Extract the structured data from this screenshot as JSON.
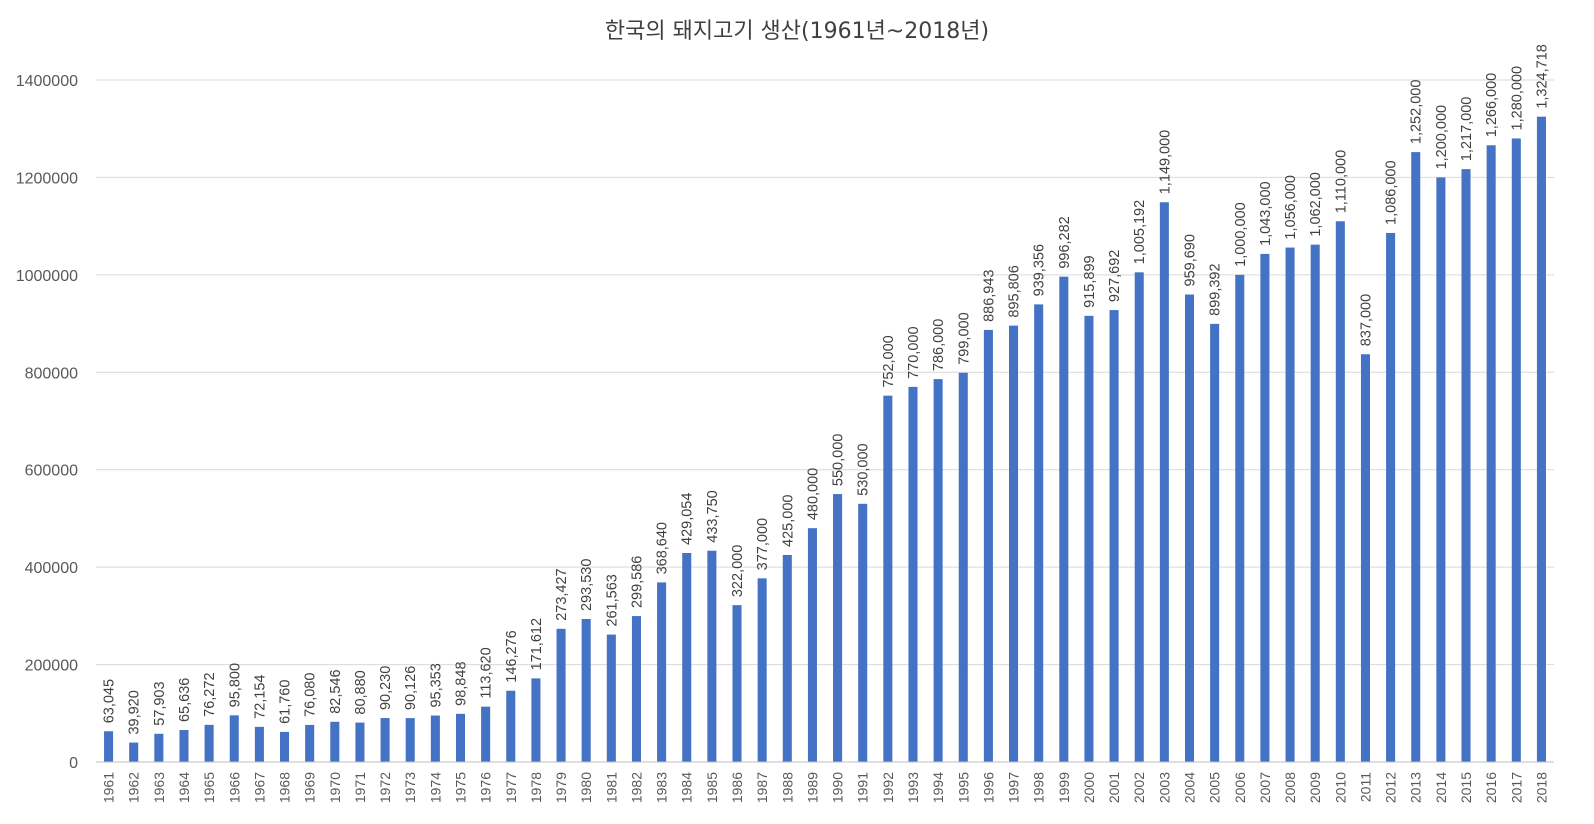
{
  "chart_data": {
    "type": "bar",
    "title": "한국의 돼지고기 생산(1961년~2018년)",
    "xlabel": "",
    "ylabel": "",
    "ylim": [
      0,
      1400000
    ],
    "yticks": [
      "0",
      "200000",
      "400000",
      "600000",
      "800000",
      "1000000",
      "1200000",
      "1400000"
    ],
    "grid": true,
    "legend": "none",
    "bar_color": "#4472C4",
    "categories": [
      "1961",
      "1962",
      "1963",
      "1964",
      "1965",
      "1966",
      "1967",
      "1968",
      "1969",
      "1970",
      "1971",
      "1972",
      "1973",
      "1974",
      "1975",
      "1976",
      "1977",
      "1978",
      "1979",
      "1980",
      "1981",
      "1982",
      "1983",
      "1984",
      "1985",
      "1986",
      "1987",
      "1988",
      "1989",
      "1990",
      "1991",
      "1992",
      "1993",
      "1994",
      "1995",
      "1996",
      "1997",
      "1998",
      "1999",
      "2000",
      "2001",
      "2002",
      "2003",
      "2004",
      "2005",
      "2006",
      "2007",
      "2008",
      "2009",
      "2010",
      "2011",
      "2012",
      "2013",
      "2014",
      "2015",
      "2016",
      "2017",
      "2018"
    ],
    "values": [
      63045,
      39920,
      57903,
      65636,
      76272,
      95800,
      72154,
      61760,
      76080,
      82546,
      80880,
      90230,
      90126,
      95353,
      98848,
      113620,
      146276,
      171612,
      273427,
      293530,
      261563,
      299586,
      368640,
      429054,
      433750,
      322000,
      377000,
      425000,
      480000,
      550000,
      530000,
      752000,
      770000,
      786000,
      799000,
      886943,
      895806,
      939356,
      996282,
      915899,
      927692,
      1005192,
      1149000,
      959690,
      899392,
      1000000,
      1043000,
      1056000,
      1062000,
      1110000,
      837000,
      1086000,
      1252000,
      1200000,
      1217000,
      1266000,
      1280000,
      1324718
    ],
    "data_labels": [
      "63,045",
      "39,920",
      "57,903",
      "65,636",
      "76,272",
      "95,800",
      "72,154",
      "61,760",
      "76,080",
      "82,546",
      "80,880",
      "90,230",
      "90,126",
      "95,353",
      "98,848",
      "113,620",
      "146,276",
      "171,612",
      "273,427",
      "293,530",
      "261,563",
      "299,586",
      "368,640",
      "429,054",
      "433,750",
      "322,000",
      "377,000",
      "425,000",
      "480,000",
      "550,000",
      "530,000",
      "752,000",
      "770,000",
      "786,000",
      "799,000",
      "886,943",
      "895,806",
      "939,356",
      "996,282",
      "915,899",
      "927,692",
      "1,005,192",
      "1,149,000",
      "959,690",
      "899,392",
      "1,000,000",
      "1,043,000",
      "1,056,000",
      "1,062,000",
      "1,110,000",
      "837,000",
      "1,086,000",
      "1,252,000",
      "1,200,000",
      "1,217,000",
      "1,266,000",
      "1,280,000",
      "1,324,718"
    ]
  }
}
